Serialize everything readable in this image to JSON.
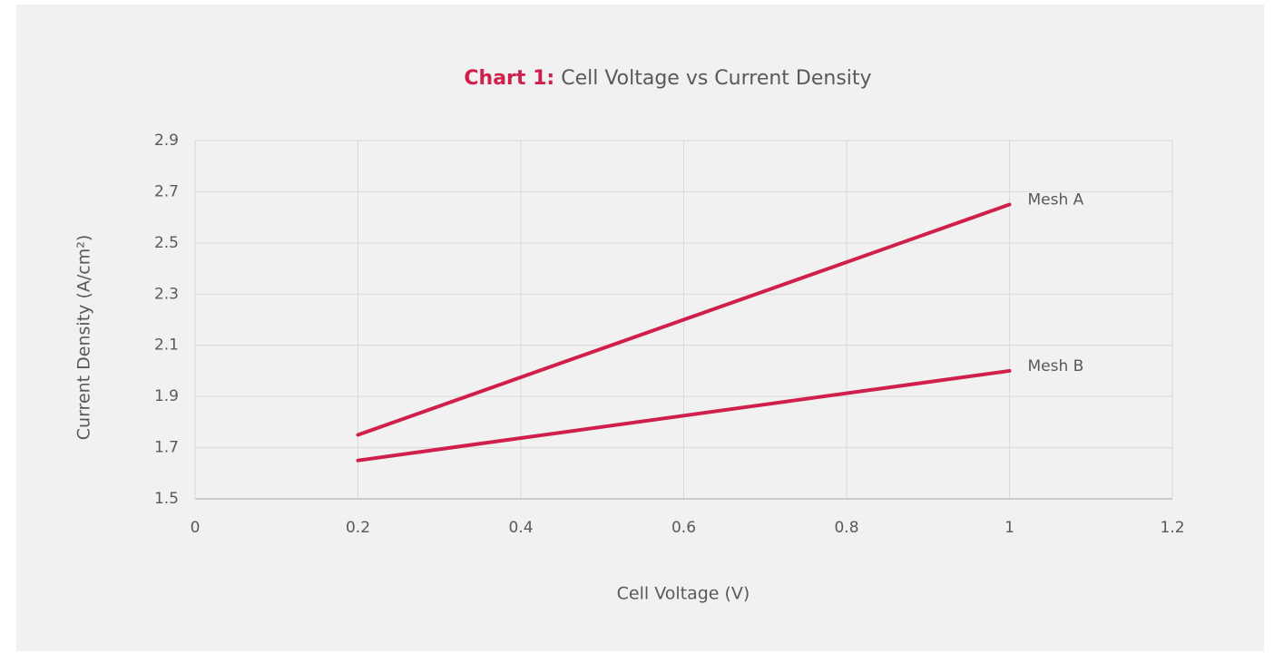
{
  "chart_data": {
    "type": "line",
    "title_label": "Chart 1:",
    "title": "Cell Voltage vs Current Density",
    "x_label": "Cell Voltage (V)",
    "y_label": "Current Density (A/cm²)",
    "x": [
      0.2,
      1
    ],
    "series": [
      {
        "name": "Mesh A",
        "color": "#d11f4b",
        "values": [
          1.75,
          2.65
        ]
      },
      {
        "name": "Mesh B",
        "color": "#d11f4b",
        "values": [
          1.65,
          2.0
        ]
      }
    ],
    "xlim": [
      0,
      1.2
    ],
    "xticks": [
      0,
      0.2,
      0.4,
      0.6,
      0.8,
      1,
      1.2
    ],
    "ylim": [
      1.5,
      2.9
    ],
    "yticks": [
      1.5,
      1.7,
      1.9,
      2.1,
      2.3,
      2.5,
      2.7,
      2.9
    ],
    "grid": true,
    "legend": "line-end"
  }
}
